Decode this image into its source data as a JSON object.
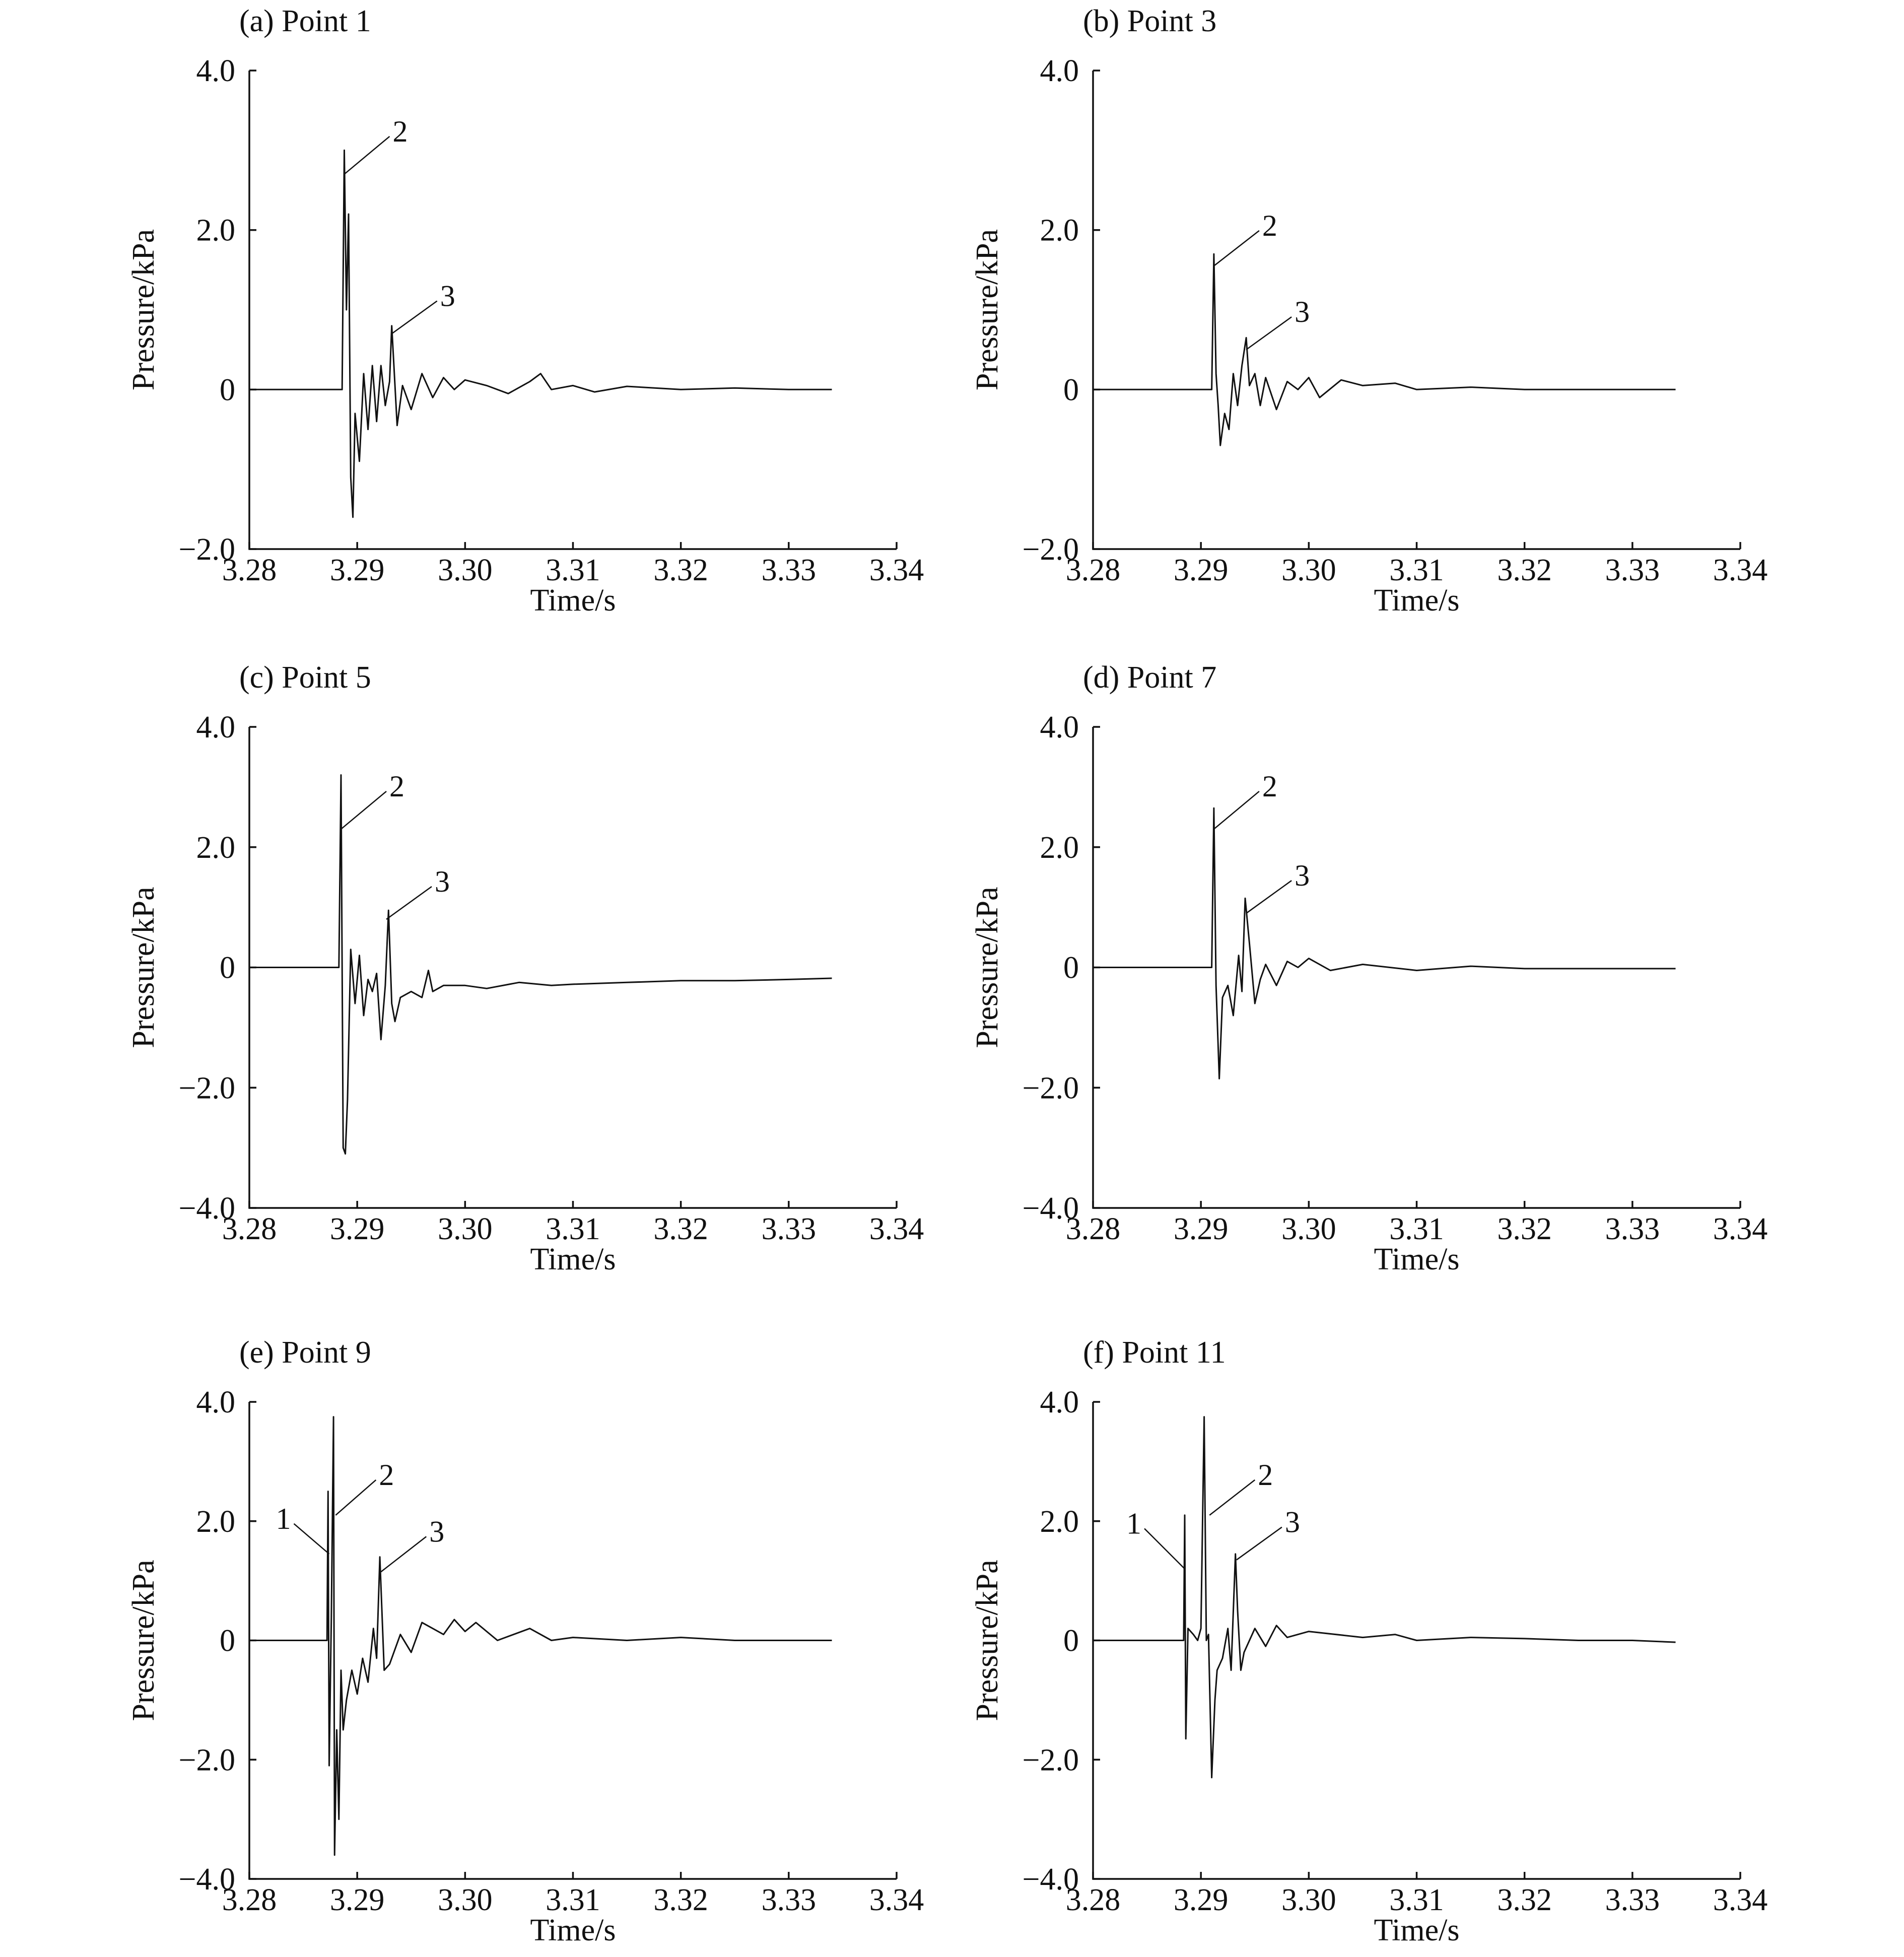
{
  "chart_data": [
    {
      "type": "line",
      "title": "(a) Point 1",
      "xlabel": "Time/s",
      "ylabel": "Pressure/kPa",
      "xlim": [
        3.28,
        3.34
      ],
      "ylim": [
        -2.0,
        4.0
      ],
      "xticks": [
        "3.28",
        "3.29",
        "3.30",
        "3.31",
        "3.32",
        "3.33",
        "3.34"
      ],
      "yticks": [
        "−2.0",
        "0",
        "2.0",
        "4.0"
      ],
      "annotations": [
        {
          "label": "2",
          "x": 3.2888,
          "y": 2.7
        },
        {
          "label": "3",
          "x": 3.2932,
          "y": 0.7
        }
      ],
      "x": [
        3.28,
        3.2886,
        3.2888,
        3.289,
        3.2892,
        3.2894,
        3.2896,
        3.2898,
        3.2902,
        3.2906,
        3.291,
        3.2914,
        3.2918,
        3.2922,
        3.2926,
        3.293,
        3.2932,
        3.2934,
        3.2937,
        3.2942,
        3.295,
        3.296,
        3.297,
        3.298,
        3.299,
        3.3,
        3.302,
        3.304,
        3.306,
        3.307,
        3.308,
        3.31,
        3.312,
        3.315,
        3.32,
        3.325,
        3.33,
        3.334
      ],
      "y": [
        0,
        0,
        3.0,
        1.0,
        2.2,
        -1.1,
        -1.6,
        -0.3,
        -0.9,
        0.2,
        -0.5,
        0.3,
        -0.4,
        0.3,
        -0.2,
        0.1,
        0.8,
        0.3,
        -0.45,
        0.05,
        -0.25,
        0.2,
        -0.1,
        0.15,
        0.0,
        0.12,
        0.05,
        -0.05,
        0.1,
        0.2,
        0.0,
        0.05,
        -0.03,
        0.04,
        0.0,
        0.02,
        0.0,
        0.0
      ]
    },
    {
      "type": "line",
      "title": "(b) Point 3",
      "xlabel": "Time/s",
      "ylabel": "Pressure/kPa",
      "xlim": [
        3.28,
        3.34
      ],
      "ylim": [
        -2.0,
        4.0
      ],
      "xticks": [
        "3.28",
        "3.29",
        "3.30",
        "3.31",
        "3.32",
        "3.33",
        "3.34"
      ],
      "yticks": [
        "−2.0",
        "0",
        "2.0",
        "4.0"
      ],
      "annotations": [
        {
          "label": "2",
          "x": 3.2912,
          "y": 1.55
        },
        {
          "label": "3",
          "x": 3.2942,
          "y": 0.5
        }
      ],
      "x": [
        3.28,
        3.291,
        3.2912,
        3.2914,
        3.2916,
        3.2918,
        3.2922,
        3.2926,
        3.293,
        3.2934,
        3.2938,
        3.2942,
        3.2945,
        3.295,
        3.2955,
        3.296,
        3.297,
        3.298,
        3.299,
        3.3,
        3.301,
        3.303,
        3.305,
        3.308,
        3.31,
        3.315,
        3.32,
        3.33,
        3.334
      ],
      "y": [
        0,
        0,
        1.7,
        0.2,
        -0.2,
        -0.7,
        -0.3,
        -0.5,
        0.2,
        -0.2,
        0.3,
        0.65,
        0.05,
        0.2,
        -0.2,
        0.15,
        -0.25,
        0.1,
        0.0,
        0.15,
        -0.1,
        0.12,
        0.05,
        0.08,
        0.0,
        0.03,
        0.0,
        0.0,
        0.0
      ]
    },
    {
      "type": "line",
      "title": "(c) Point 5",
      "xlabel": "Time/s",
      "ylabel": "Pressure/kPa",
      "xlim": [
        3.28,
        3.34
      ],
      "ylim": [
        -4.0,
        4.0
      ],
      "xticks": [
        "3.28",
        "3.29",
        "3.30",
        "3.31",
        "3.32",
        "3.33",
        "3.34"
      ],
      "yticks": [
        "−4.0",
        "−2.0",
        "0",
        "2.0",
        "4.0"
      ],
      "annotations": [
        {
          "label": "2",
          "x": 3.2885,
          "y": 2.3
        },
        {
          "label": "3",
          "x": 3.2927,
          "y": 0.8
        }
      ],
      "x": [
        3.28,
        3.2883,
        3.2885,
        3.2887,
        3.2889,
        3.2891,
        3.2894,
        3.2898,
        3.2902,
        3.2906,
        3.291,
        3.2914,
        3.2918,
        3.2922,
        3.2926,
        3.2929,
        3.2932,
        3.2935,
        3.294,
        3.295,
        3.296,
        3.2966,
        3.297,
        3.298,
        3.3,
        3.302,
        3.305,
        3.308,
        3.31,
        3.315,
        3.32,
        3.325,
        3.33,
        3.334
      ],
      "y": [
        0,
        0,
        3.2,
        -3.0,
        -3.1,
        -2.2,
        0.3,
        -0.6,
        0.2,
        -0.8,
        -0.2,
        -0.4,
        -0.1,
        -1.2,
        -0.3,
        0.95,
        -0.6,
        -0.9,
        -0.5,
        -0.4,
        -0.5,
        -0.05,
        -0.4,
        -0.3,
        -0.3,
        -0.35,
        -0.25,
        -0.3,
        -0.28,
        -0.25,
        -0.22,
        -0.22,
        -0.2,
        -0.18
      ]
    },
    {
      "type": "line",
      "title": "(d) Point 7",
      "xlabel": "Time/s",
      "ylabel": "Pressure/kPa",
      "xlim": [
        3.28,
        3.34
      ],
      "ylim": [
        -4.0,
        4.0
      ],
      "xticks": [
        "3.28",
        "3.29",
        "3.30",
        "3.31",
        "3.32",
        "3.33",
        "3.34"
      ],
      "yticks": [
        "−4.0",
        "−2.0",
        "0",
        "2.0",
        "4.0"
      ],
      "annotations": [
        {
          "label": "2",
          "x": 3.2912,
          "y": 2.3
        },
        {
          "label": "3",
          "x": 3.2942,
          "y": 0.9
        }
      ],
      "x": [
        3.28,
        3.291,
        3.2912,
        3.2914,
        3.2917,
        3.292,
        3.2925,
        3.293,
        3.2935,
        3.2938,
        3.2941,
        3.2945,
        3.295,
        3.2955,
        3.296,
        3.297,
        3.298,
        3.299,
        3.3,
        3.302,
        3.305,
        3.31,
        3.315,
        3.32,
        3.33,
        3.334
      ],
      "y": [
        0,
        0,
        2.65,
        -0.3,
        -1.85,
        -0.5,
        -0.3,
        -0.8,
        0.2,
        -0.4,
        1.15,
        0.4,
        -0.6,
        -0.2,
        0.05,
        -0.3,
        0.1,
        0.0,
        0.15,
        -0.05,
        0.05,
        -0.05,
        0.02,
        -0.02,
        -0.02,
        -0.02
      ]
    },
    {
      "type": "line",
      "title": "(e) Point 9",
      "xlabel": "Time/s",
      "ylabel": "Pressure/kPa",
      "xlim": [
        3.28,
        3.34
      ],
      "ylim": [
        -4.0,
        4.0
      ],
      "xticks": [
        "3.28",
        "3.29",
        "3.30",
        "3.31",
        "3.32",
        "3.33",
        "3.34"
      ],
      "yticks": [
        "−4.0",
        "−2.0",
        "0",
        "2.0",
        "4.0"
      ],
      "annotations": [
        {
          "label": "1",
          "x": 3.2874,
          "y": 1.45
        },
        {
          "label": "2",
          "x": 3.288,
          "y": 2.1
        },
        {
          "label": "3",
          "x": 3.2922,
          "y": 1.15
        }
      ],
      "x": [
        3.28,
        3.2872,
        3.2873,
        3.2874,
        3.2876,
        3.2878,
        3.2879,
        3.2881,
        3.2883,
        3.2885,
        3.2887,
        3.289,
        3.2895,
        3.29,
        3.2905,
        3.291,
        3.2915,
        3.2918,
        3.2921,
        3.2925,
        3.293,
        3.294,
        3.295,
        3.296,
        3.297,
        3.298,
        3.299,
        3.3,
        3.301,
        3.303,
        3.306,
        3.308,
        3.31,
        3.315,
        3.32,
        3.325,
        3.33,
        3.334
      ],
      "y": [
        0,
        0,
        2.5,
        -2.1,
        0.4,
        3.75,
        -3.6,
        -1.5,
        -3.0,
        -0.5,
        -1.5,
        -1.0,
        -0.5,
        -0.9,
        -0.3,
        -0.7,
        0.2,
        -0.3,
        1.4,
        -0.5,
        -0.4,
        0.1,
        -0.2,
        0.3,
        0.2,
        0.1,
        0.35,
        0.15,
        0.3,
        0.0,
        0.2,
        0.0,
        0.05,
        0.0,
        0.05,
        0.0,
        0.0,
        0.0
      ]
    },
    {
      "type": "line",
      "title": "(f) Point 11",
      "xlabel": "Time/s",
      "ylabel": "Pressure/kPa",
      "xlim": [
        3.28,
        3.34
      ],
      "ylim": [
        -4.0,
        4.0
      ],
      "xticks": [
        "3.28",
        "3.29",
        "3.30",
        "3.31",
        "3.32",
        "3.33",
        "3.34"
      ],
      "yticks": [
        "−4.0",
        "−2.0",
        "0",
        "2.0",
        "4.0"
      ],
      "annotations": [
        {
          "label": "1",
          "x": 3.2885,
          "y": 1.2
        },
        {
          "label": "2",
          "x": 3.2908,
          "y": 2.1
        },
        {
          "label": "3",
          "x": 3.2933,
          "y": 1.35
        }
      ],
      "x": [
        3.28,
        3.2884,
        3.2885,
        3.2886,
        3.2888,
        3.2893,
        3.2897,
        3.29,
        3.2903,
        3.2905,
        3.2907,
        3.291,
        3.2913,
        3.2915,
        3.292,
        3.2925,
        3.2928,
        3.2932,
        3.2934,
        3.2937,
        3.294,
        3.295,
        3.296,
        3.297,
        3.298,
        3.3,
        3.305,
        3.308,
        3.31,
        3.315,
        3.32,
        3.325,
        3.33,
        3.334
      ],
      "y": [
        0,
        0,
        2.1,
        -1.65,
        0.2,
        0.1,
        0.0,
        0.2,
        3.75,
        0.0,
        0.1,
        -2.3,
        -1.0,
        -0.5,
        -0.3,
        0.2,
        -0.5,
        1.45,
        0.5,
        -0.5,
        -0.2,
        0.2,
        -0.1,
        0.25,
        0.05,
        0.15,
        0.05,
        0.1,
        0.0,
        0.05,
        0.03,
        0.0,
        0.0,
        -0.03
      ]
    }
  ]
}
